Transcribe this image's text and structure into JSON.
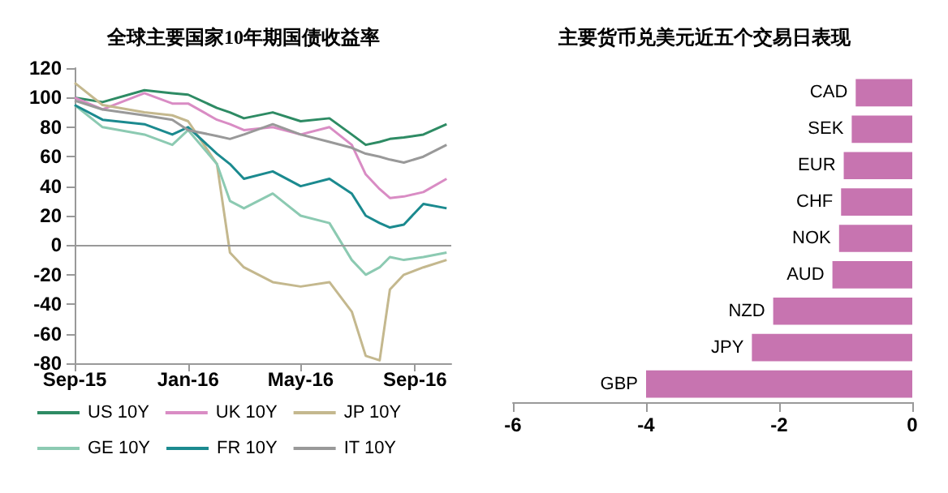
{
  "chart_data": [
    {
      "type": "line",
      "title": "全球主要国家10年期国债收益率",
      "xlim": [
        "2015-09-01",
        "2016-10-10"
      ],
      "ylim": [
        -80,
        120
      ],
      "xticks": [
        {
          "value": "2015-09-01",
          "label": "Sep-15"
        },
        {
          "value": "2016-01-01",
          "label": "Jan-16"
        },
        {
          "value": "2016-05-01",
          "label": "May-16"
        },
        {
          "value": "2016-09-01",
          "label": "Sep-16"
        }
      ],
      "yticks": [
        -80,
        -60,
        -40,
        -20,
        0,
        20,
        40,
        60,
        80,
        100,
        120
      ],
      "grid": false,
      "legend": "bottom",
      "line_style": "solid",
      "marker": "none",
      "ref_lines": [
        {
          "axis": "y",
          "value": 0,
          "color": "#999999"
        }
      ],
      "x": [
        "2015-09-01",
        "2015-10-01",
        "2015-11-15",
        "2015-12-15",
        "2016-01-01",
        "2016-02-01",
        "2016-02-15",
        "2016-03-01",
        "2016-04-01",
        "2016-05-01",
        "2016-06-01",
        "2016-06-25",
        "2016-07-10",
        "2016-07-25",
        "2016-08-05",
        "2016-08-20",
        "2016-09-10",
        "2016-10-05"
      ],
      "series": [
        {
          "name": "US 10Y",
          "color": "#2e8b64",
          "values": [
            100,
            97,
            105,
            103,
            102,
            93,
            90,
            86,
            90,
            84,
            86,
            75,
            68,
            70,
            72,
            73,
            75,
            82
          ]
        },
        {
          "name": "UK 10Y",
          "color": "#d98cc4",
          "values": [
            100,
            92,
            103,
            96,
            96,
            85,
            82,
            78,
            80,
            75,
            80,
            68,
            48,
            38,
            32,
            33,
            36,
            45
          ]
        },
        {
          "name": "JP 10Y",
          "color": "#c4b88e",
          "values": [
            110,
            95,
            90,
            88,
            84,
            55,
            -5,
            -15,
            -25,
            -28,
            -25,
            -45,
            -75,
            -78,
            -30,
            -20,
            -15,
            -10
          ]
        },
        {
          "name": "GE 10Y",
          "color": "#8ccab2",
          "values": [
            95,
            80,
            75,
            68,
            78,
            55,
            30,
            25,
            35,
            20,
            15,
            -10,
            -20,
            -15,
            -8,
            -10,
            -8,
            -5
          ]
        },
        {
          "name": "FR 10Y",
          "color": "#1b8a8f",
          "values": [
            95,
            85,
            82,
            75,
            80,
            62,
            55,
            45,
            50,
            40,
            45,
            35,
            20,
            15,
            12,
            14,
            28,
            25
          ]
        },
        {
          "name": "IT 10Y",
          "color": "#999999",
          "values": [
            98,
            92,
            88,
            85,
            78,
            74,
            72,
            75,
            82,
            75,
            70,
            66,
            62,
            60,
            58,
            56,
            60,
            68
          ]
        }
      ]
    },
    {
      "type": "bar",
      "orientation": "horizontal",
      "title": "主要货币兑美元近五个交易日表现",
      "color": "#c774b0",
      "categories": [
        "CAD",
        "SEK",
        "EUR",
        "CHF",
        "NOK",
        "AUD",
        "NZD",
        "JPY",
        "GBP"
      ],
      "values": [
        -0.85,
        -0.91,
        -1.03,
        -1.07,
        -1.1,
        -1.2,
        -2.09,
        -2.41,
        -4.0
      ],
      "xlim": [
        -6,
        0
      ],
      "xticks": [
        -6,
        -4,
        -2,
        0
      ],
      "grid": false
    }
  ]
}
